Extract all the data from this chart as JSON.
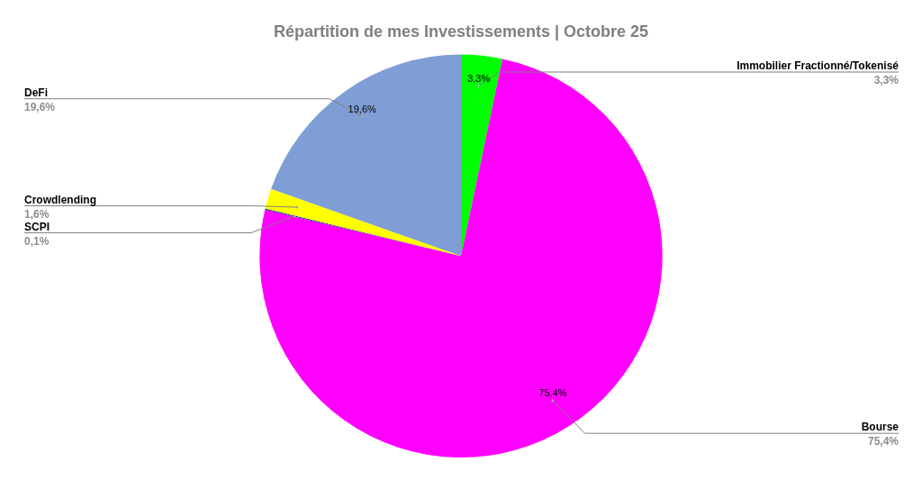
{
  "chart_data": {
    "type": "pie",
    "title": "Répartition de mes Investissements | Octobre 25",
    "categories": [
      "Immobilier Fractionné/Tokenisé",
      "Bourse",
      "SCPI",
      "Crowdlending",
      "DeFi"
    ],
    "values": [
      3.3,
      75.4,
      0.1,
      1.6,
      19.6
    ],
    "colors": [
      "#00ff00",
      "#ff00ff",
      "#1f3a93",
      "#ffff00",
      "#7f9ed6"
    ],
    "value_labels": [
      "3,3%",
      "75,4%",
      "0,1%",
      "1,6%",
      "19,6%"
    ],
    "annotations": [
      {
        "text": "3,3%",
        "x": "Immobilier Fractionné/Tokenisé"
      },
      {
        "text": "75,4%",
        "x": "Bourse"
      },
      {
        "text": "19,6%",
        "x": "DeFi"
      }
    ],
    "legend": false
  }
}
